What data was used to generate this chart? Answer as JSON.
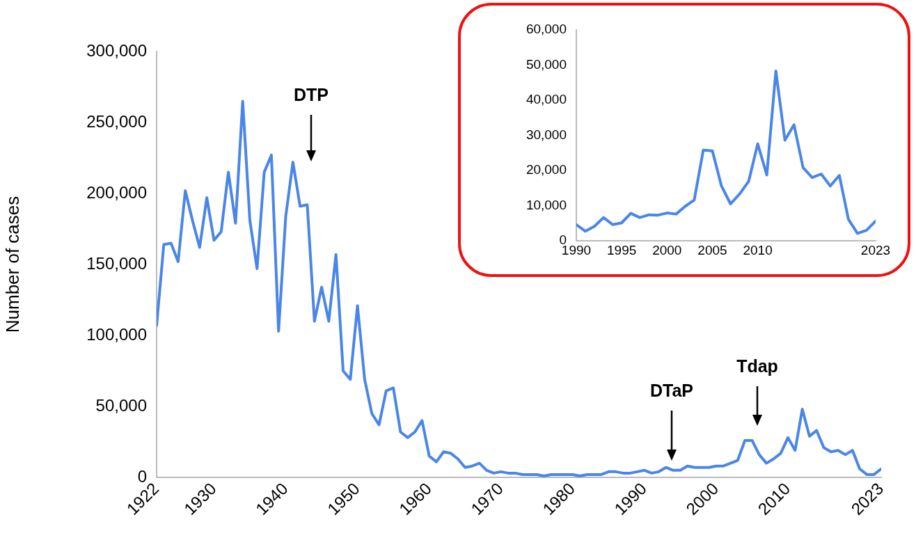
{
  "chart_data": [
    {
      "type": "line",
      "ylabel": "Number of cases",
      "marker": "none",
      "x": [
        1922,
        1923,
        1924,
        1925,
        1926,
        1927,
        1928,
        1929,
        1930,
        1931,
        1932,
        1933,
        1934,
        1935,
        1936,
        1937,
        1938,
        1939,
        1940,
        1941,
        1942,
        1943,
        1944,
        1945,
        1946,
        1947,
        1948,
        1949,
        1950,
        1951,
        1952,
        1953,
        1954,
        1955,
        1956,
        1957,
        1958,
        1959,
        1960,
        1961,
        1962,
        1963,
        1964,
        1965,
        1966,
        1967,
        1968,
        1969,
        1970,
        1971,
        1972,
        1973,
        1974,
        1975,
        1976,
        1977,
        1978,
        1979,
        1980,
        1981,
        1982,
        1983,
        1984,
        1985,
        1986,
        1987,
        1988,
        1989,
        1990,
        1991,
        1992,
        1993,
        1994,
        1995,
        1996,
        1997,
        1998,
        1999,
        2000,
        2001,
        2002,
        2003,
        2004,
        2005,
        2006,
        2007,
        2008,
        2009,
        2010,
        2011,
        2012,
        2013,
        2014,
        2015,
        2016,
        2017,
        2018,
        2019,
        2020,
        2021,
        2022,
        2023
      ],
      "series": [
        {
          "color": "#4a86e8",
          "values": [
            107000,
            164000,
            165000,
            152000,
            202000,
            181000,
            162000,
            197000,
            167000,
            173000,
            215000,
            179000,
            265000,
            181000,
            147000,
            215000,
            227000,
            103000,
            184000,
            222000,
            191000,
            192000,
            110000,
            134000,
            110000,
            157000,
            75000,
            69000,
            121000,
            69000,
            45000,
            37000,
            61000,
            63000,
            32000,
            28000,
            32000,
            40000,
            15000,
            11000,
            18000,
            17000,
            13000,
            7000,
            8000,
            10000,
            5000,
            3000,
            4000,
            3000,
            3000,
            2000,
            2000,
            2000,
            1000,
            2000,
            2000,
            2000,
            2000,
            1000,
            2000,
            2000,
            2000,
            4000,
            4000,
            3000,
            3000,
            4000,
            5000,
            3000,
            4000,
            7000,
            5000,
            5000,
            8000,
            7000,
            7000,
            7000,
            8000,
            8000,
            10000,
            12000,
            26000,
            26000,
            16000,
            10000,
            13000,
            17000,
            28000,
            19000,
            48000,
            29000,
            33000,
            21000,
            18000,
            19000,
            16000,
            19000,
            6000,
            2000,
            2000,
            6000
          ]
        }
      ],
      "xlim": [
        1922,
        2023
      ],
      "xticks": [
        1922,
        1930,
        1940,
        1950,
        1960,
        1970,
        1980,
        1990,
        2000,
        2010,
        2023
      ],
      "ylim": [
        0,
        300000
      ],
      "yticks": [
        0,
        {
          "value": 50000,
          "label": "50,000"
        },
        {
          "value": 100000,
          "label": "100,000"
        },
        {
          "value": 150000,
          "label": "150,000"
        },
        {
          "value": 200000,
          "label": "200,000"
        },
        {
          "value": 250000,
          "label": "250,000"
        },
        {
          "value": 300000,
          "label": "300,000"
        }
      ],
      "annotations": [
        "DTP",
        "DTaP",
        "Tdap"
      ]
    },
    {
      "type": "line",
      "marker": "none",
      "x": [
        1990,
        1991,
        1992,
        1993,
        1994,
        1995,
        1996,
        1997,
        1998,
        1999,
        2000,
        2001,
        2002,
        2003,
        2004,
        2005,
        2006,
        2007,
        2008,
        2009,
        2010,
        2011,
        2012,
        2013,
        2014,
        2015,
        2016,
        2017,
        2018,
        2019,
        2020,
        2021,
        2022,
        2023
      ],
      "series": [
        {
          "color": "#4a86e8",
          "values": [
            4600,
            2700,
            4100,
            6600,
            4600,
            5100,
            7800,
            6600,
            7400,
            7300,
            7900,
            7600,
            9800,
            11600,
            25800,
            25600,
            15600,
            10500,
            13300,
            16900,
            27600,
            18700,
            48300,
            28600,
            33000,
            20800,
            18000,
            19000,
            15600,
            18600,
            6100,
            2100,
            3000,
            5600
          ]
        }
      ],
      "xlim": [
        1990,
        2023
      ],
      "xticks": [
        1990,
        1995,
        2000,
        2005,
        2010,
        2023
      ],
      "ylim": [
        0,
        60000
      ],
      "yticks": [
        0,
        {
          "value": 10000,
          "label": "10,000"
        },
        {
          "value": 20000,
          "label": "20,000"
        },
        {
          "value": 30000,
          "label": "30,000"
        },
        {
          "value": 40000,
          "label": "40,000"
        },
        {
          "value": 50000,
          "label": "50,000"
        },
        {
          "value": 60000,
          "label": "60,000"
        }
      ]
    }
  ]
}
